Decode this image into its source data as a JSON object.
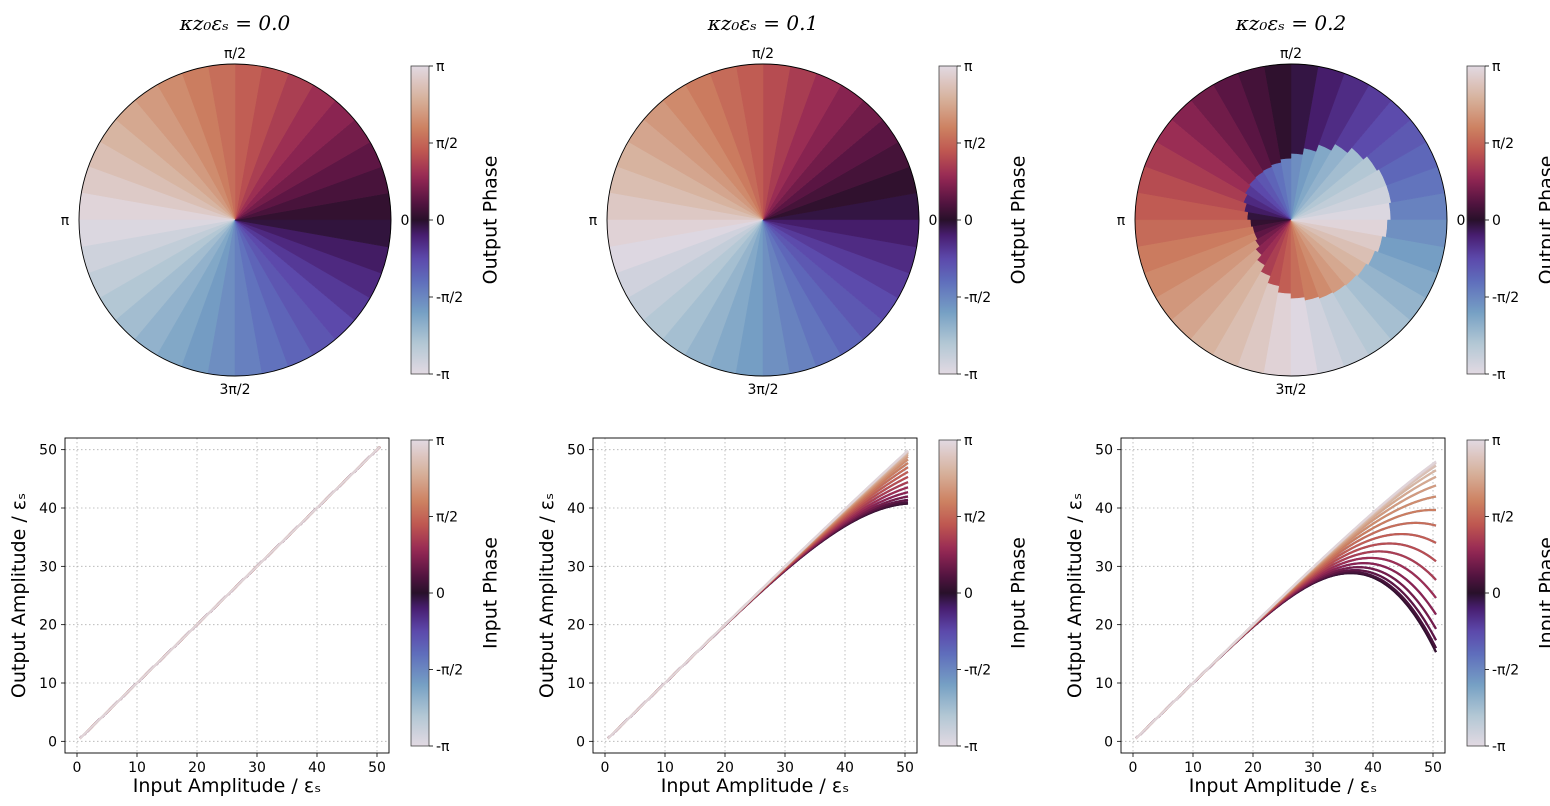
{
  "chart_data": [
    {
      "type": "polar-wedge",
      "title": "κz₀εₛ = 0.0",
      "kappa": 0.0,
      "angle_labels": {
        "right": "0",
        "top": "π/2",
        "left": "π",
        "bottom": "3π/2"
      },
      "colorbar_label": "Output Phase",
      "colorbar_ticks": [
        "π",
        "π/2",
        "0",
        "-π/2",
        "-π"
      ]
    },
    {
      "type": "polar-wedge",
      "title": "κz₀εₛ = 0.1",
      "kappa": 0.1,
      "angle_labels": {
        "right": "0",
        "top": "π/2",
        "left": "π",
        "bottom": "3π/2"
      },
      "colorbar_label": "Output Phase",
      "colorbar_ticks": [
        "π",
        "π/2",
        "0",
        "-π/2",
        "-π"
      ]
    },
    {
      "type": "polar-wedge",
      "title": "κz₀εₛ = 0.2",
      "kappa": 0.2,
      "angle_labels": {
        "right": "0",
        "top": "π/2",
        "left": "π",
        "bottom": "3π/2"
      },
      "colorbar_label": "Output Phase",
      "colorbar_ticks": [
        "π",
        "π/2",
        "0",
        "-π/2",
        "-π"
      ]
    },
    {
      "type": "line",
      "kappa": 0.0,
      "xlabel": "Input Amplitude / εₛ",
      "ylabel": "Output Amplitude / εₛ",
      "xlim": [
        -2,
        52
      ],
      "ylim": [
        -2,
        52
      ],
      "xticks": [
        0,
        10,
        20,
        30,
        40,
        50
      ],
      "yticks": [
        0,
        10,
        20,
        30,
        40,
        50
      ],
      "grid": true,
      "colorbar_label": "Input Phase",
      "colorbar_ticks": [
        "π",
        "π/2",
        "0",
        "-π/2",
        "-π"
      ]
    },
    {
      "type": "line",
      "kappa": 0.1,
      "xlabel": "Input Amplitude / εₛ",
      "ylabel": "Output Amplitude / εₛ",
      "xlim": [
        -2,
        52
      ],
      "ylim": [
        -2,
        52
      ],
      "xticks": [
        0,
        10,
        20,
        30,
        40,
        50
      ],
      "yticks": [
        0,
        10,
        20,
        30,
        40,
        50
      ],
      "grid": true,
      "colorbar_label": "Input Phase",
      "colorbar_ticks": [
        "π",
        "π/2",
        "0",
        "-π/2",
        "-π"
      ]
    },
    {
      "type": "line",
      "kappa": 0.2,
      "xlabel": "Input Amplitude / εₛ",
      "ylabel": "Output Amplitude / εₛ",
      "xlim": [
        -2,
        52
      ],
      "ylim": [
        -2,
        52
      ],
      "xticks": [
        0,
        10,
        20,
        30,
        40,
        50
      ],
      "yticks": [
        0,
        10,
        20,
        30,
        40,
        50
      ],
      "grid": true,
      "colorbar_label": "Input Phase",
      "colorbar_ticks": [
        "π",
        "π/2",
        "0",
        "-π/2",
        "-π"
      ]
    }
  ]
}
